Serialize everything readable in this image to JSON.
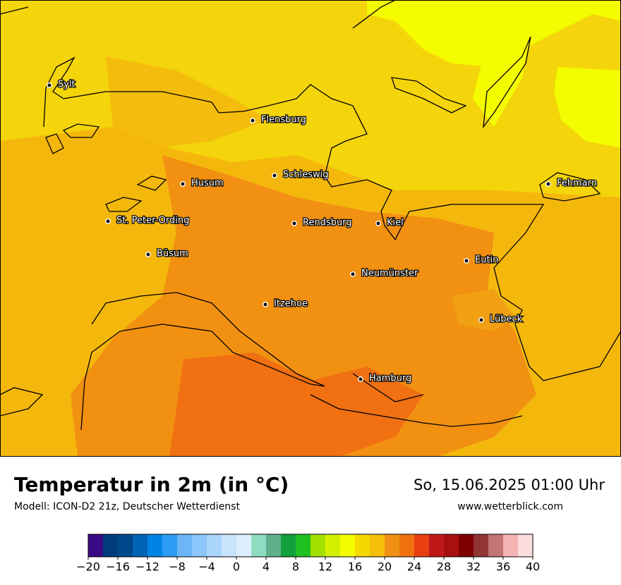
{
  "map": {
    "cities": [
      "Sylt",
      "Flensburg",
      "Schleswig",
      "Husum",
      "Fehmarn",
      "St. Peter-Ording",
      "Rendsburg",
      "Kiel",
      "Büsum",
      "Eutin",
      "Neumünster",
      "Itzehoe",
      "Lübeck",
      "Hamburg"
    ]
  },
  "footer": {
    "title": "Temperatur in 2m (in °C)",
    "subtitle": "Modell: ICON-D2 21z, Deutscher Wetterdienst",
    "date": "So, 15.06.2025 01:00 Uhr",
    "website": "www.wetterblick.com"
  },
  "colorbar": {
    "bins": [
      -20,
      -18,
      -16,
      -14,
      -12,
      -10,
      -8,
      -6,
      -4,
      -2,
      0,
      2,
      4,
      6,
      8,
      10,
      12,
      14,
      16,
      18,
      20,
      22,
      24,
      26,
      28,
      30,
      32,
      34,
      36,
      38,
      40
    ],
    "colors": [
      "#3a0a84",
      "#003c7c",
      "#00488c",
      "#0064b4",
      "#0084e4",
      "#2c9cf4",
      "#6cb6f8",
      "#8cc6fa",
      "#aad6fc",
      "#c8e4fc",
      "#dcedfd",
      "#90dcc0",
      "#60b08c",
      "#10a03c",
      "#20c020",
      "#a4e000",
      "#d4f000",
      "#f4fc00",
      "#f4d800",
      "#f4c00c",
      "#f09014",
      "#f07010",
      "#e84010",
      "#c01818",
      "#a81010",
      "#800000",
      "#903434",
      "#c47474",
      "#f4b4b4",
      "#fcdede"
    ],
    "ticks": [
      {
        "value": -20,
        "label": "−20"
      },
      {
        "value": -16,
        "label": "−16"
      },
      {
        "value": -12,
        "label": "−12"
      },
      {
        "value": -8,
        "label": "−8"
      },
      {
        "value": -4,
        "label": "−4"
      },
      0,
      4,
      8,
      12,
      16,
      20,
      24,
      28,
      32,
      36,
      40
    ]
  }
}
